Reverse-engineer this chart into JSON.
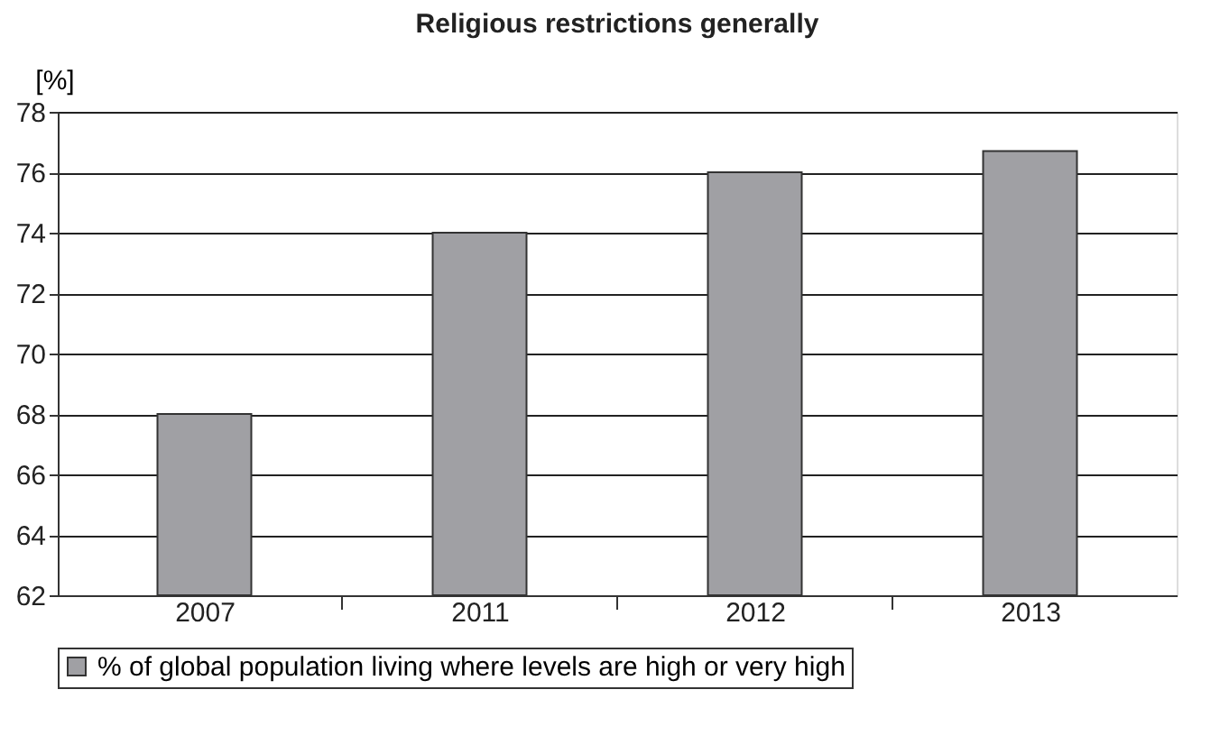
{
  "chart_data": {
    "type": "bar",
    "title": "Religious restrictions generally",
    "ylabel": "[%]",
    "categories": [
      "2007",
      "2011",
      "2012",
      "2013"
    ],
    "series": [
      {
        "name": "% of global population living where levels are high or very high",
        "color": "#a0a0a4",
        "values": [
          68,
          74,
          76,
          76.7
        ]
      }
    ],
    "ylim": [
      62,
      78
    ],
    "yticks": [
      62,
      64,
      66,
      68,
      70,
      72,
      74,
      76,
      78
    ],
    "grid": "y",
    "legend": "bottom"
  }
}
